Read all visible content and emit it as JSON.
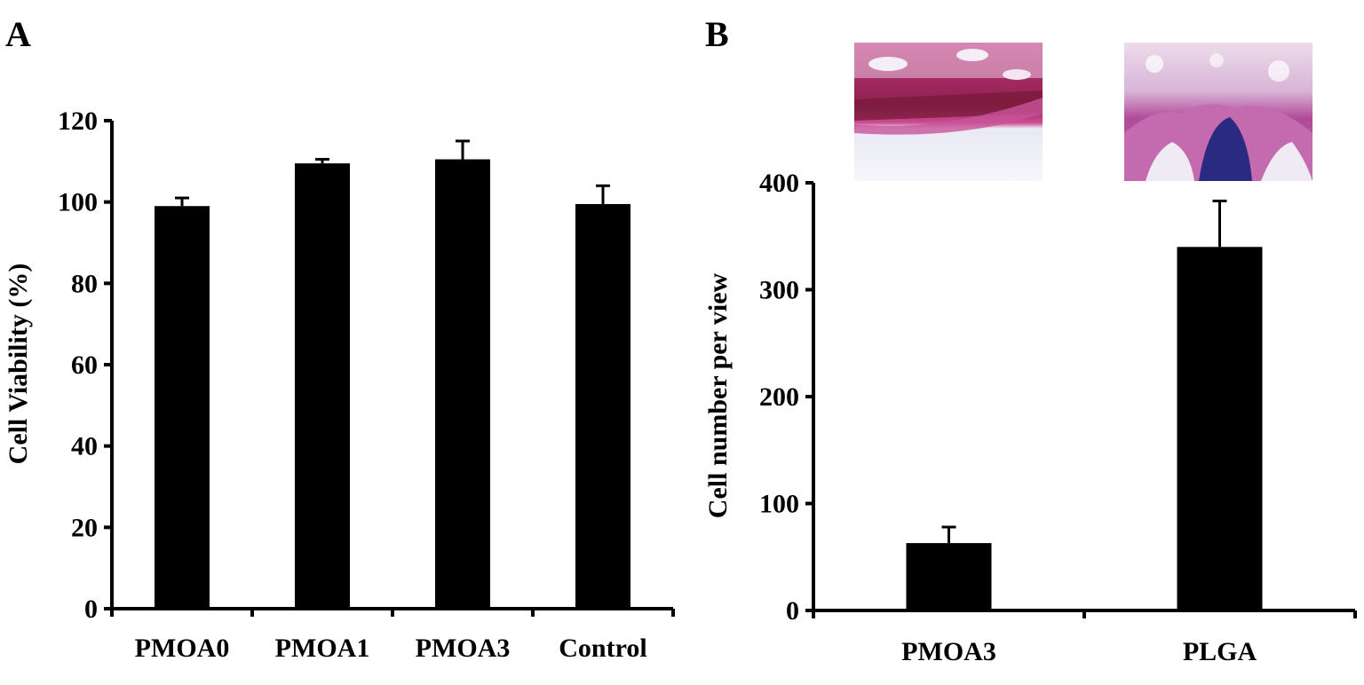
{
  "chart_data": [
    {
      "panel": "A",
      "type": "bar",
      "categories": [
        "PMOA0",
        "PMOA1",
        "PMOA3",
        "Control"
      ],
      "values": [
        99,
        109.5,
        110.5,
        99.5
      ],
      "errors": [
        2,
        1,
        4.5,
        4.5
      ],
      "ylabel": "Cell Viability (%)",
      "xlabel": "",
      "ylim": [
        0,
        120
      ],
      "yticks": [
        "0",
        "20",
        "40",
        "60",
        "80",
        "100",
        "120"
      ],
      "grid": false,
      "bar_color": "#000000"
    },
    {
      "panel": "B",
      "type": "bar",
      "categories": [
        "PMOA3",
        "PLGA"
      ],
      "values": [
        63,
        340
      ],
      "errors": [
        15,
        43
      ],
      "ylabel": "Cell number per view",
      "xlabel": "",
      "ylim": [
        0,
        400
      ],
      "yticks": [
        "0",
        "100",
        "200",
        "300",
        "400"
      ],
      "grid": false,
      "bar_color": "#000000",
      "insets": [
        {
          "category": "PMOA3",
          "description_icon": "histology-image-dense-tissue",
          "colors": [
            "#f3f3fb",
            "#c2367f",
            "#7a1a3a"
          ]
        },
        {
          "category": "PLGA",
          "description_icon": "histology-image-cell-infiltration",
          "colors": [
            "#f3f3fb",
            "#b04a9a",
            "#2a2a80"
          ]
        }
      ]
    }
  ]
}
